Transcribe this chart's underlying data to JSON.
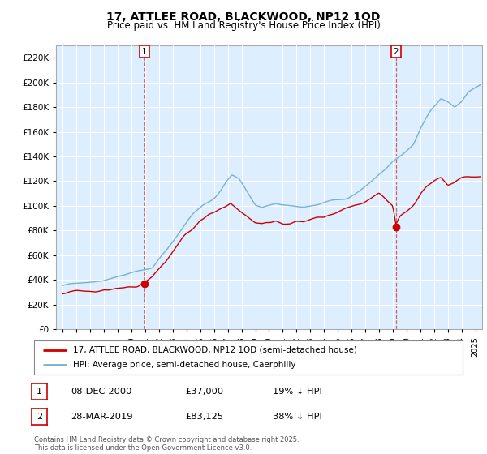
{
  "title1": "17, ATTLEE ROAD, BLACKWOOD, NP12 1QD",
  "title2": "Price paid vs. HM Land Registry's House Price Index (HPI)",
  "ylabel_vals": [
    0,
    20000,
    40000,
    60000,
    80000,
    100000,
    120000,
    140000,
    160000,
    180000,
    200000,
    220000
  ],
  "ylim": [
    0,
    230000
  ],
  "xlim_start": 1994.5,
  "xlim_end": 2025.5,
  "legend_line1": "17, ATTLEE ROAD, BLACKWOOD, NP12 1QD (semi-detached house)",
  "legend_line2": "HPI: Average price, semi-detached house, Caerphilly",
  "line1_color": "#cc0000",
  "line2_color": "#7ab0d4",
  "marker1_x": 2000.93,
  "marker1_y": 37000,
  "marker2_x": 2019.23,
  "marker2_y": 83125,
  "annotation1": [
    "1",
    "08-DEC-2000",
    "£37,000",
    "19% ↓ HPI"
  ],
  "annotation2": [
    "2",
    "28-MAR-2019",
    "£83,125",
    "38% ↓ HPI"
  ],
  "footer": "Contains HM Land Registry data © Crown copyright and database right 2025.\nThis data is licensed under the Open Government Licence v3.0.",
  "background_color": "#ffffff",
  "chart_bg_color": "#ddeeff",
  "grid_color": "#ffffff"
}
